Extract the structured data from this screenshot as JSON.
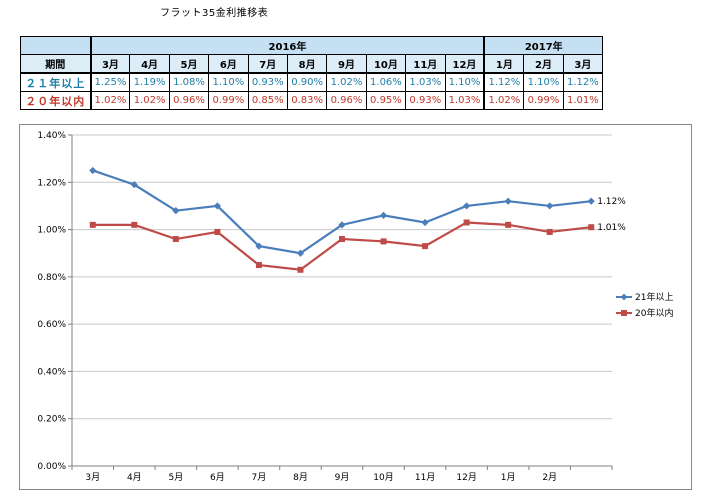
{
  "title": "フラット35金利推移表",
  "table": {
    "header_label": "期間",
    "years": [
      {
        "label": "2016年",
        "span": 10
      },
      {
        "label": "2017年",
        "span": 3
      }
    ],
    "months": [
      "3月",
      "4月",
      "5月",
      "6月",
      "7月",
      "8月",
      "9月",
      "10月",
      "11月",
      "12月",
      "1月",
      "2月",
      "3月"
    ],
    "rows": [
      {
        "label": "２１年以上",
        "values": [
          "1.25%",
          "1.19%",
          "1.08%",
          "1.10%",
          "0.93%",
          "0.90%",
          "1.02%",
          "1.06%",
          "1.03%",
          "1.10%",
          "1.12%",
          "1.10%",
          "1.12%"
        ]
      },
      {
        "label": "２０年以内",
        "values": [
          "1.02%",
          "1.02%",
          "0.96%",
          "0.99%",
          "0.85%",
          "0.83%",
          "0.96%",
          "0.95%",
          "0.93%",
          "1.03%",
          "1.02%",
          "0.99%",
          "1.01%"
        ]
      }
    ]
  },
  "chart_data": {
    "type": "line",
    "categories": [
      "3月",
      "4月",
      "5月",
      "6月",
      "7月",
      "8月",
      "9月",
      "10月",
      "11月",
      "12月",
      "1月",
      "2月",
      ""
    ],
    "series": [
      {
        "name": "21年以上",
        "values": [
          1.25,
          1.19,
          1.08,
          1.1,
          0.93,
          0.9,
          1.02,
          1.06,
          1.03,
          1.1,
          1.12,
          1.1,
          1.12
        ],
        "color": "#4a7ebb",
        "marker": "diamond",
        "end_label": "1.12%"
      },
      {
        "name": "20年以内",
        "values": [
          1.02,
          1.02,
          0.96,
          0.99,
          0.85,
          0.83,
          0.96,
          0.95,
          0.93,
          1.03,
          1.02,
          0.99,
          1.01
        ],
        "color": "#be4b48",
        "marker": "square",
        "end_label": "1.01%"
      }
    ],
    "y_ticks": [
      "0.00%",
      "0.20%",
      "0.40%",
      "0.60%",
      "0.80%",
      "1.00%",
      "1.20%",
      "1.40%"
    ],
    "ylim": [
      0,
      1.4
    ],
    "grid": true,
    "legend": "right"
  }
}
